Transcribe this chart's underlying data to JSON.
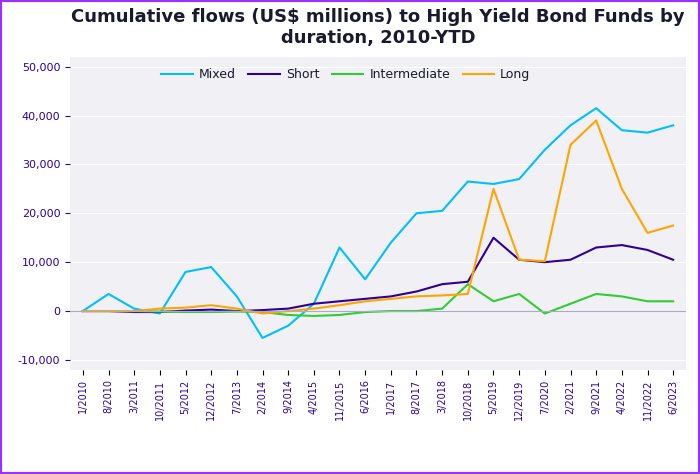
{
  "title": "Cumulative flows (US$ millions) to High Yield Bond Funds by\nduration, 2010-YTD",
  "title_fontsize": 13,
  "legend_labels": [
    "Mixed",
    "Short",
    "Intermediate",
    "Long"
  ],
  "colors": {
    "Mixed": "#00BFFF",
    "Short": "#2E0099",
    "Intermediate": "#32CD32",
    "Long": "#FFA500"
  },
  "background_color": "#F0F0F5",
  "ylim": [
    -12000,
    52000
  ],
  "yticks": [
    -10000,
    0,
    10000,
    20000,
    30000,
    40000,
    50000
  ],
  "x_labels": [
    "1/2010",
    "8/2010",
    "3/2011",
    "10/2011",
    "5/2012",
    "12/2012",
    "7/2013",
    "2/2014",
    "9/2014",
    "4/2015",
    "11/2015",
    "6/2016",
    "1/2017",
    "8/2017",
    "3/2018",
    "10/2018",
    "5/2019",
    "12/2019",
    "7/2020",
    "2/2021",
    "9/2021",
    "4/2022",
    "11/2022",
    "6/2023"
  ],
  "mixed_data": [
    0,
    3500,
    500,
    -500,
    8000,
    9000,
    3000,
    -5500,
    -3000,
    1500,
    13000,
    6500,
    14000,
    20000,
    20500,
    26500,
    26000,
    27000,
    33000,
    38000,
    41500,
    37000,
    36500,
    38000
  ],
  "short_data": [
    0,
    0,
    -200,
    -200,
    100,
    300,
    0,
    200,
    500,
    1500,
    2000,
    2500,
    3000,
    4000,
    5500,
    6000,
    15000,
    10500,
    10000,
    10500,
    13000,
    13500,
    12500,
    10500
  ],
  "intermediate_data": [
    0,
    0,
    0,
    -100,
    -200,
    -200,
    -100,
    -200,
    -800,
    -1000,
    -800,
    -200,
    0,
    0,
    500,
    5500,
    2000,
    3500,
    -500,
    1500,
    3500,
    3000,
    2000,
    2000
  ],
  "long_data": [
    0,
    0,
    0,
    500,
    700,
    1200,
    500,
    -500,
    0,
    500,
    1200,
    2000,
    2500,
    3000,
    3200,
    3500,
    25000,
    10500,
    10200,
    34000,
    39000,
    25000,
    16000,
    17500
  ],
  "border_color": "#9B30FF"
}
